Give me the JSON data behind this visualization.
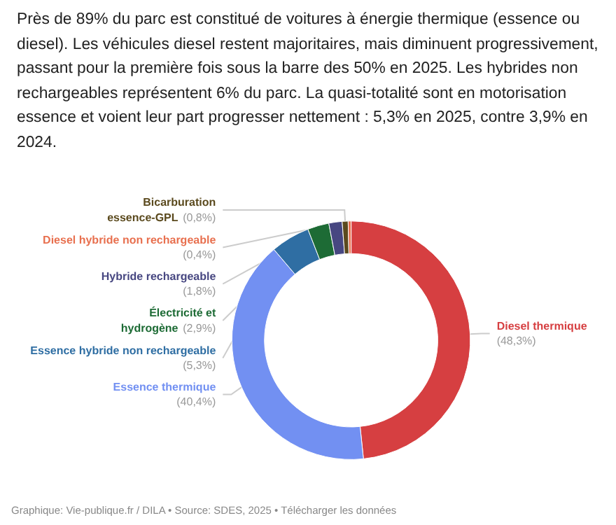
{
  "chart_data": {
    "type": "donut",
    "subtitle": "Près de 89% du parc est constitué de voitures à énergie thermique (essence ou diesel). Les véhicules diesel restent majoritaires, mais diminuent progressivement, passant pour la première fois sous la barre des 50% en 2025. Les hybrides non rechargeables représentent 6% du parc. La quasi-totalité sont en motorisation essence et voient leur part progresser nettement : 5,3% en 2025, contre 3,9% en 2024.",
    "categories": [
      "Diesel thermique",
      "Essence thermique",
      "Essence hybride non rechargeable",
      "Électricité et hydrogène",
      "Hybride rechargeable",
      "Bicarburation essence-GPL",
      "Diesel hybride non rechargeable"
    ],
    "values": [
      48.3,
      40.4,
      5.3,
      2.9,
      1.8,
      0.8,
      0.4
    ],
    "colors": [
      "#d63f41",
      "#7290f2",
      "#2f6ea3",
      "#1d6b35",
      "#474781",
      "#5b4a1e",
      "#e8704f"
    ],
    "value_labels": [
      "(48,3%)",
      "(40,4%)",
      "(5,3%)",
      "(2,9%)",
      "(1,8%)",
      "(0,8%)",
      "(0,4%)"
    ],
    "legend": false,
    "annotations": [
      "Graphique: Vie-publique.fr / DILA • Source: SDES, 2025 • Télécharger les données"
    ]
  }
}
